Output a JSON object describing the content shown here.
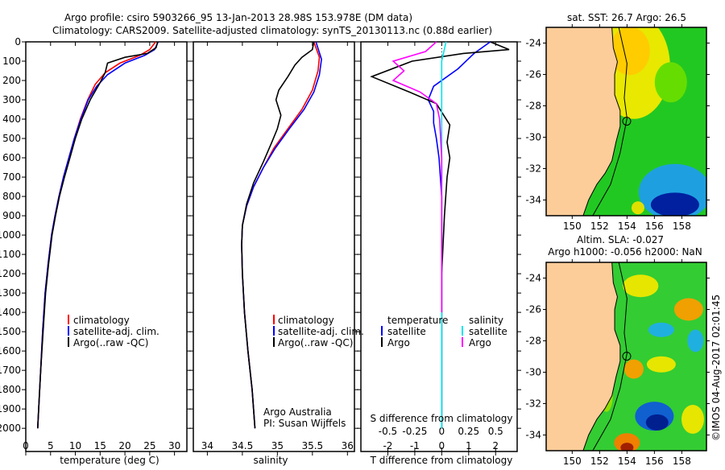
{
  "title_line1": "Argo profile: csiro 5903266_95 13-Jan-2013 28.98S 153.978E (DM data)",
  "title_line2": "Climatology: CARS2009. Satellite-adjusted climatology: synTS_20130113.nc (0.88d earlier)",
  "footer_stamp": "©IMOS 04-Aug-2017 02:01:45",
  "colors": {
    "climatology": "#ff0000",
    "satellite": "#0000ff",
    "argo": "#000000",
    "sal_satellite": "#00e5ee",
    "sal_argo": "#ff00ff",
    "land": "#fccc99"
  },
  "chart_data": [
    {
      "type": "line",
      "xlabel": "temperature (deg C)",
      "ylabel": "",
      "xlim": [
        0,
        32.5
      ],
      "ylim": [
        2120,
        0
      ],
      "xticks": [
        0,
        5,
        10,
        15,
        20,
        25,
        30
      ],
      "yticks": [
        0,
        100,
        200,
        300,
        400,
        500,
        600,
        700,
        800,
        900,
        1000,
        1100,
        1200,
        1300,
        1400,
        1500,
        1600,
        1700,
        1800,
        1900,
        2000
      ],
      "legend": [
        "climatology",
        "satellite-adj. clim.",
        "Argo(..raw -QC)"
      ],
      "series": [
        {
          "name": "climatology",
          "color": "#ff0000",
          "points": [
            [
              26.2,
              0
            ],
            [
              25,
              40
            ],
            [
              23,
              70
            ],
            [
              19,
              110
            ],
            [
              16,
              160
            ],
            [
              14,
              220
            ],
            [
              12.5,
              300
            ],
            [
              11,
              400
            ],
            [
              9.8,
              500
            ],
            [
              8.7,
              600
            ],
            [
              7.6,
              700
            ],
            [
              6.7,
              800
            ],
            [
              5.9,
              900
            ],
            [
              5.2,
              1000
            ],
            [
              4.5,
              1150
            ],
            [
              3.9,
              1300
            ],
            [
              3.4,
              1500
            ],
            [
              3,
              1700
            ],
            [
              2.6,
              1900
            ],
            [
              2.4,
              2000
            ]
          ]
        },
        {
          "name": "satellite-adj. clim.",
          "color": "#0000ff",
          "points": [
            [
              26.7,
              0
            ],
            [
              26,
              40
            ],
            [
              24,
              70
            ],
            [
              20,
              110
            ],
            [
              16.5,
              170
            ],
            [
              14.3,
              230
            ],
            [
              12.6,
              300
            ],
            [
              11.1,
              400
            ],
            [
              9.8,
              500
            ],
            [
              8.7,
              600
            ],
            [
              7.6,
              700
            ],
            [
              6.7,
              800
            ],
            [
              5.9,
              900
            ],
            [
              5.2,
              1000
            ],
            [
              4.5,
              1150
            ],
            [
              3.9,
              1300
            ],
            [
              3.4,
              1500
            ],
            [
              3,
              1700
            ],
            [
              2.6,
              1900
            ],
            [
              2.4,
              2000
            ]
          ]
        },
        {
          "name": "Argo(..raw -QC)",
          "color": "#000000",
          "points": [
            [
              26.6,
              0
            ],
            [
              26.3,
              30
            ],
            [
              24.5,
              60
            ],
            [
              20,
              80
            ],
            [
              16.5,
              110
            ],
            [
              16,
              160
            ],
            [
              14.8,
              220
            ],
            [
              13,
              300
            ],
            [
              11.3,
              400
            ],
            [
              10,
              500
            ],
            [
              8.9,
              600
            ],
            [
              7.8,
              700
            ],
            [
              6.8,
              800
            ],
            [
              6,
              900
            ],
            [
              5.3,
              1000
            ],
            [
              4.6,
              1150
            ],
            [
              4,
              1300
            ],
            [
              3.5,
              1500
            ],
            [
              3,
              1700
            ],
            [
              2.6,
              1900
            ],
            [
              2.4,
              2000
            ]
          ]
        }
      ]
    },
    {
      "type": "line",
      "xlabel": "salinity",
      "xlim": [
        33.8,
        36.1
      ],
      "ylim": [
        2120,
        0
      ],
      "xticks": [
        34,
        34.5,
        35,
        35.5,
        36
      ],
      "legend": [
        "climatology",
        "satellite-adj. clim.",
        "Argo(..raw -QC)"
      ],
      "annotation": [
        "Argo Australia",
        "PI: Susan Wijffels"
      ],
      "series": [
        {
          "name": "climatology",
          "color": "#ff0000",
          "points": [
            [
              35.52,
              0
            ],
            [
              35.6,
              80
            ],
            [
              35.58,
              150
            ],
            [
              35.5,
              250
            ],
            [
              35.35,
              350
            ],
            [
              35.15,
              450
            ],
            [
              34.95,
              550
            ],
            [
              34.8,
              650
            ],
            [
              34.66,
              750
            ],
            [
              34.56,
              850
            ],
            [
              34.5,
              950
            ],
            [
              34.49,
              1050
            ],
            [
              34.5,
              1200
            ],
            [
              34.53,
              1400
            ],
            [
              34.58,
              1600
            ],
            [
              34.64,
              1800
            ],
            [
              34.68,
              2000
            ]
          ]
        },
        {
          "name": "satellite-adj. clim.",
          "color": "#0000ff",
          "points": [
            [
              35.55,
              0
            ],
            [
              35.63,
              90
            ],
            [
              35.6,
              170
            ],
            [
              35.52,
              260
            ],
            [
              35.38,
              350
            ],
            [
              35.17,
              450
            ],
            [
              34.97,
              550
            ],
            [
              34.8,
              650
            ],
            [
              34.66,
              750
            ],
            [
              34.56,
              850
            ],
            [
              34.5,
              950
            ],
            [
              34.49,
              1050
            ],
            [
              34.5,
              1200
            ],
            [
              34.53,
              1400
            ],
            [
              34.58,
              1600
            ],
            [
              34.64,
              1800
            ],
            [
              34.68,
              2000
            ]
          ]
        },
        {
          "name": "Argo(..raw -QC)",
          "color": "#000000",
          "points": [
            [
              35.52,
              0
            ],
            [
              35.5,
              40
            ],
            [
              35.35,
              80
            ],
            [
              35.25,
              120
            ],
            [
              35.15,
              180
            ],
            [
              35.02,
              250
            ],
            [
              34.98,
              300
            ],
            [
              35.05,
              380
            ],
            [
              35.0,
              450
            ],
            [
              34.92,
              520
            ],
            [
              34.8,
              620
            ],
            [
              34.66,
              730
            ],
            [
              34.56,
              840
            ],
            [
              34.5,
              950
            ],
            [
              34.49,
              1050
            ],
            [
              34.5,
              1200
            ],
            [
              34.53,
              1400
            ],
            [
              34.58,
              1600
            ],
            [
              34.64,
              1800
            ],
            [
              34.68,
              2000
            ]
          ]
        }
      ]
    },
    {
      "type": "line",
      "xlabel": "T difference from climatology",
      "xlabel_top": "S difference from climatology",
      "xlim": [
        -3,
        2.8
      ],
      "ylim": [
        2120,
        0
      ],
      "xticks": [
        -2,
        -1,
        0,
        1,
        2
      ],
      "xticks_top": [
        "-0.5",
        "-0.25",
        "0",
        "0.25",
        "0.5"
      ],
      "legend_temperature": {
        "title": "temperature",
        "items": [
          "satellite",
          "Argo"
        ]
      },
      "legend_salinity": {
        "title": "salinity",
        "items": [
          "satellite",
          "Argo"
        ]
      },
      "series": [
        {
          "name": "temperature satellite",
          "color": "#0000ff",
          "points": [
            [
              1.8,
              0
            ],
            [
              1.2,
              60
            ],
            [
              0.6,
              140
            ],
            [
              -0.3,
              230
            ],
            [
              -0.5,
              300
            ],
            [
              -0.3,
              360
            ],
            [
              -0.3,
              420
            ],
            [
              -0.2,
              500
            ],
            [
              -0.1,
              600
            ],
            [
              0,
              800
            ],
            [
              0,
              1200
            ],
            [
              0,
              2000
            ]
          ]
        },
        {
          "name": "temperature Argo",
          "color": "#000000",
          "points": [
            [
              1.8,
              0
            ],
            [
              2.5,
              40
            ],
            [
              0.8,
              60
            ],
            [
              -1.1,
              100
            ],
            [
              -2.6,
              180
            ],
            [
              -1.2,
              260
            ],
            [
              -0.2,
              320
            ],
            [
              0.3,
              430
            ],
            [
              0.2,
              520
            ],
            [
              0.3,
              600
            ],
            [
              0.2,
              700
            ],
            [
              0.1,
              900
            ],
            [
              0,
              1200
            ],
            [
              0,
              2000
            ]
          ]
        },
        {
          "name": "salinity satellite",
          "color": "#00e5ee",
          "points": [
            [
              0.04,
              0
            ],
            [
              0,
              100
            ],
            [
              0,
              1000
            ],
            [
              0,
              2000
            ]
          ]
        },
        {
          "name": "salinity Argo",
          "color": "#ff00ff",
          "points": [
            [
              -0.05,
              0
            ],
            [
              -0.15,
              50
            ],
            [
              -0.45,
              100
            ],
            [
              -0.35,
              150
            ],
            [
              -0.45,
              200
            ],
            [
              -0.2,
              260
            ],
            [
              -0.05,
              320
            ],
            [
              -0.02,
              400
            ],
            [
              0,
              600
            ],
            [
              0,
              800
            ],
            [
              0,
              1000
            ],
            [
              0,
              1400
            ]
          ]
        }
      ]
    },
    {
      "type": "heatmap",
      "title": "sat. SST: 26.7 Argo: 26.5",
      "xlim": [
        148.1,
        159.8
      ],
      "ylim": [
        -35,
        -23
      ],
      "xticks": [
        150,
        152,
        154,
        156,
        158
      ],
      "yticks": [
        -24,
        -26,
        -28,
        -30,
        -32,
        -34
      ]
    },
    {
      "type": "heatmap",
      "title_line1": "Altim. SLA: -0.027",
      "title_line2": "Argo h1000: -0.056 h2000: NaN",
      "xlim": [
        148.1,
        159.8
      ],
      "ylim": [
        -35,
        -23
      ],
      "xticks": [
        150,
        152,
        154,
        156,
        158
      ],
      "yticks": [
        -24,
        -26,
        -28,
        -30,
        -32,
        -34
      ]
    }
  ]
}
